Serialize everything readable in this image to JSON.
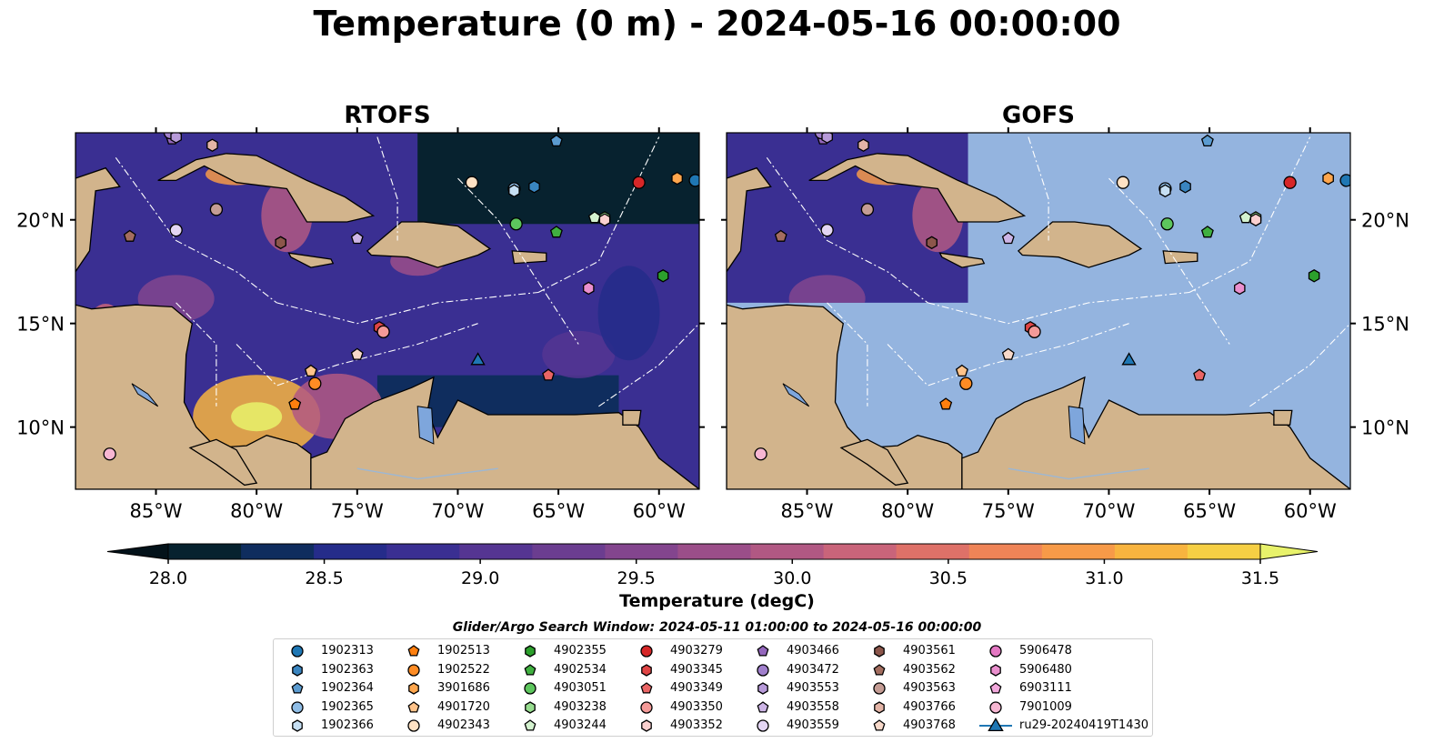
{
  "figure_title": "Temperature (0 m) - 2024-05-16 00:00:00",
  "panels": [
    {
      "title": "RTOFS",
      "coverage": "full"
    },
    {
      "title": "GOFS",
      "coverage": "partial"
    }
  ],
  "map_extent": {
    "lon": [
      -89,
      -58
    ],
    "lat": [
      7,
      24.2
    ]
  },
  "longitude_ticks": [
    {
      "value": -85,
      "label": "85°W"
    },
    {
      "value": -80,
      "label": "80°W"
    },
    {
      "value": -75,
      "label": "75°W"
    },
    {
      "value": -70,
      "label": "70°W"
    },
    {
      "value": -65,
      "label": "65°W"
    },
    {
      "value": -60,
      "label": "60°W"
    }
  ],
  "latitude_ticks": [
    {
      "value": 10,
      "label": "10°N"
    },
    {
      "value": 15,
      "label": "15°N"
    },
    {
      "value": 20,
      "label": "20°N"
    }
  ],
  "colorbar": {
    "label": "Temperature (degC)",
    "min": 28.0,
    "max": 31.5,
    "step": 0.25,
    "extend": "both",
    "ticks": [
      "28.0",
      "28.5",
      "29.0",
      "29.5",
      "30.0",
      "30.5",
      "31.0",
      "31.5"
    ],
    "colors": [
      "#07222f",
      "#0f2d5e",
      "#252c8a",
      "#3a2f92",
      "#553592",
      "#6b3d90",
      "#83458e",
      "#9b4e89",
      "#b15883",
      "#c9647a",
      "#de7168",
      "#ef8457",
      "#f79a48",
      "#f8b43f",
      "#f6cf44"
    ],
    "under_color": "#03121a",
    "over_color": "#e8f26b"
  },
  "colors": {
    "land": "#d2b48c",
    "ocean_masked": "#94b4df",
    "eez_lines": "#ffffff",
    "rivers": "#9cb7d4"
  },
  "search_window": "Glider/Argo Search Window: 2024-05-11 01:00:00 to 2024-05-16 00:00:00",
  "legend": [
    {
      "id": "1902313",
      "marker": "circle",
      "color": "#1f77b4"
    },
    {
      "id": "1902363",
      "marker": "hexagon",
      "color": "#3a85c0"
    },
    {
      "id": "1902364",
      "marker": "pentagon",
      "color": "#5b9bd0"
    },
    {
      "id": "1902365",
      "marker": "circle",
      "color": "#8fbde6"
    },
    {
      "id": "1902366",
      "marker": "hexagon",
      "color": "#c6dff3"
    },
    {
      "id": "1902513",
      "marker": "pentagon",
      "color": "#ff7f0e"
    },
    {
      "id": "1902522",
      "marker": "circle",
      "color": "#ff8c24"
    },
    {
      "id": "3901686",
      "marker": "hexagon",
      "color": "#ffa64d"
    },
    {
      "id": "4901720",
      "marker": "pentagon",
      "color": "#ffc38a"
    },
    {
      "id": "4902343",
      "marker": "circle",
      "color": "#ffe2c4"
    },
    {
      "id": "4902355",
      "marker": "hexagon",
      "color": "#2ca02c"
    },
    {
      "id": "4902534",
      "marker": "pentagon",
      "color": "#40b040"
    },
    {
      "id": "4903051",
      "marker": "circle",
      "color": "#5dc65d"
    },
    {
      "id": "4903238",
      "marker": "hexagon",
      "color": "#97dc8f"
    },
    {
      "id": "4903244",
      "marker": "pentagon",
      "color": "#d4f2cf"
    },
    {
      "id": "4903279",
      "marker": "circle",
      "color": "#d62728"
    },
    {
      "id": "4903345",
      "marker": "hexagon",
      "color": "#e04545"
    },
    {
      "id": "4903349",
      "marker": "pentagon",
      "color": "#ea6565"
    },
    {
      "id": "4903350",
      "marker": "circle",
      "color": "#f49a98"
    },
    {
      "id": "4903352",
      "marker": "hexagon",
      "color": "#fbd0cf"
    },
    {
      "id": "4903466",
      "marker": "pentagon",
      "color": "#9467bd"
    },
    {
      "id": "4903472",
      "marker": "circle",
      "color": "#a07fcc"
    },
    {
      "id": "4903553",
      "marker": "hexagon",
      "color": "#b79ad9"
    },
    {
      "id": "4903558",
      "marker": "pentagon",
      "color": "#cdb5e6"
    },
    {
      "id": "4903559",
      "marker": "circle",
      "color": "#e3d5f3"
    },
    {
      "id": "4903561",
      "marker": "hexagon",
      "color": "#8c564b"
    },
    {
      "id": "4903562",
      "marker": "pentagon",
      "color": "#a36d5f"
    },
    {
      "id": "4903563",
      "marker": "circle",
      "color": "#c49c94"
    },
    {
      "id": "4903766",
      "marker": "hexagon",
      "color": "#e3b4a6"
    },
    {
      "id": "4903768",
      "marker": "pentagon",
      "color": "#f8d9ca"
    },
    {
      "id": "5906478",
      "marker": "circle",
      "color": "#e377c2"
    },
    {
      "id": "5906480",
      "marker": "hexagon",
      "color": "#ea8fce"
    },
    {
      "id": "6903111",
      "marker": "pentagon",
      "color": "#f2a8dc"
    },
    {
      "id": "7901009",
      "marker": "circle",
      "color": "#f7b6d2"
    },
    {
      "id": "ru29-20240419T1430",
      "marker": "triangle-line",
      "color": "#1f77b4"
    }
  ],
  "platforms": [
    {
      "id": "1902313",
      "lon": -58.2,
      "lat": 21.9
    },
    {
      "id": "1902363",
      "lon": -66.2,
      "lat": 21.6
    },
    {
      "id": "1902364",
      "lon": -65.1,
      "lat": 23.8
    },
    {
      "id": "1902365",
      "lon": -67.2,
      "lat": 21.5
    },
    {
      "id": "1902366",
      "lon": -67.2,
      "lat": 21.4
    },
    {
      "id": "1902513",
      "lon": -78.1,
      "lat": 11.1
    },
    {
      "id": "1902522",
      "lon": -77.1,
      "lat": 12.1
    },
    {
      "id": "3901686",
      "lon": -59.1,
      "lat": 22.0
    },
    {
      "id": "4901720",
      "lon": -77.3,
      "lat": 12.7
    },
    {
      "id": "4902343",
      "lon": -69.3,
      "lat": 21.8
    },
    {
      "id": "4902355",
      "lon": -59.8,
      "lat": 17.3
    },
    {
      "id": "4902534",
      "lon": -65.1,
      "lat": 19.4
    },
    {
      "id": "4903051",
      "lon": -67.1,
      "lat": 19.8
    },
    {
      "id": "4903238",
      "lon": -62.7,
      "lat": 20.1
    },
    {
      "id": "4903244",
      "lon": -63.2,
      "lat": 20.1
    },
    {
      "id": "4903279",
      "lon": -61.0,
      "lat": 21.8
    },
    {
      "id": "4903345",
      "lon": -73.9,
      "lat": 14.8
    },
    {
      "id": "4903349",
      "lon": -65.5,
      "lat": 12.5
    },
    {
      "id": "4903350",
      "lon": -73.7,
      "lat": 14.6
    },
    {
      "id": "4903352",
      "lon": -62.7,
      "lat": 20.0
    },
    {
      "id": "4903466",
      "lon": -84.2,
      "lat": 23.9
    },
    {
      "id": "4903472",
      "lon": -84.3,
      "lat": 24.2
    },
    {
      "id": "4903553",
      "lon": -84.0,
      "lat": 24.0
    },
    {
      "id": "4903558",
      "lon": -75.0,
      "lat": 19.1
    },
    {
      "id": "4903559",
      "lon": -84.0,
      "lat": 19.5
    },
    {
      "id": "4903561",
      "lon": -78.8,
      "lat": 18.9
    },
    {
      "id": "4903562",
      "lon": -86.3,
      "lat": 19.2
    },
    {
      "id": "4903563",
      "lon": -82.0,
      "lat": 20.5
    },
    {
      "id": "4903766",
      "lon": -82.2,
      "lat": 23.6
    },
    {
      "id": "4903768",
      "lon": -75.0,
      "lat": 13.5
    },
    {
      "id": "5906478",
      "lon": -86.0,
      "lat": 24.3
    },
    {
      "id": "5906480",
      "lon": -63.5,
      "lat": 16.7
    },
    {
      "id": "6903111",
      "lon": -86.0,
      "lat": 24.3
    },
    {
      "id": "7901009",
      "lon": -87.3,
      "lat": 8.7
    },
    {
      "id": "ru29-20240419T1430",
      "lon": -69.0,
      "lat": 13.2
    }
  ]
}
